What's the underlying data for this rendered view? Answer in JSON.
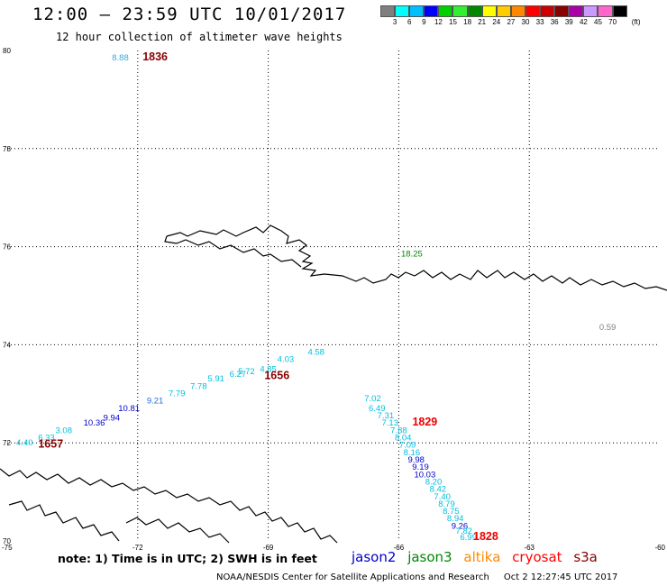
{
  "title": "12:00 – 23:59 UTC 10/01/2017",
  "subtitle": "12 hour collection of altimeter wave heights",
  "legend": {
    "unit": "(ft)",
    "colors": [
      "#7f7f7f",
      "#00ffff",
      "#00bfff",
      "#0000ff",
      "#00d000",
      "#33ee33",
      "#008800",
      "#ffff00",
      "#ffcc00",
      "#ff8800",
      "#ff0000",
      "#cc0000",
      "#880000",
      "#aa00aa",
      "#cc99ff",
      "#ff66cc",
      "#000000"
    ],
    "labels": [
      "3",
      "6",
      "9",
      "12",
      "15",
      "18",
      "21",
      "24",
      "27",
      "30",
      "33",
      "36",
      "39",
      "42",
      "45",
      "70"
    ]
  },
  "axes": {
    "lat_ticks": [
      {
        "value": 70,
        "label": "70"
      },
      {
        "value": 72,
        "label": "72"
      },
      {
        "value": 74,
        "label": "74"
      },
      {
        "value": 76,
        "label": "76"
      },
      {
        "value": 78,
        "label": "78"
      },
      {
        "value": 80,
        "label": "80"
      }
    ],
    "lon_ticks": [
      {
        "value": -75,
        "label": "-75"
      },
      {
        "value": -72,
        "label": "-72"
      },
      {
        "value": -69,
        "label": "-69"
      },
      {
        "value": -66,
        "label": "-66"
      },
      {
        "value": -63,
        "label": "-63"
      },
      {
        "value": -60,
        "label": "-60"
      }
    ],
    "lat_range": [
      70,
      80
    ],
    "lon_range": [
      -75,
      -60
    ]
  },
  "observations": [
    {
      "text": "8.88",
      "lon": -72.4,
      "lat": 79.8,
      "color": "#33a9e0"
    },
    {
      "text": "18.25",
      "lon": -65.7,
      "lat": 75.8,
      "color": "#008800"
    },
    {
      "text": "0.59",
      "lon": -61.2,
      "lat": 74.3,
      "color": "#7f7f7f"
    },
    {
      "text": "4.58",
      "lon": -67.9,
      "lat": 73.8,
      "color": "#00bfdf"
    },
    {
      "text": "4.03",
      "lon": -68.6,
      "lat": 73.65,
      "color": "#00bfdf"
    },
    {
      "text": "4.85",
      "lon": -69.0,
      "lat": 73.45,
      "color": "#00bfdf"
    },
    {
      "text": "5.72",
      "lon": -69.5,
      "lat": 73.4,
      "color": "#00bfdf"
    },
    {
      "text": "6.27",
      "lon": -69.7,
      "lat": 73.35,
      "color": "#00bfdf"
    },
    {
      "text": "5.91",
      "lon": -70.2,
      "lat": 73.25,
      "color": "#00bfdf"
    },
    {
      "text": "7.78",
      "lon": -70.6,
      "lat": 73.1,
      "color": "#00bfdf"
    },
    {
      "text": "7.79",
      "lon": -71.1,
      "lat": 72.95,
      "color": "#00bfdf"
    },
    {
      "text": "9.21",
      "lon": -71.6,
      "lat": 72.8,
      "color": "#1e6ed8"
    },
    {
      "text": "10.81",
      "lon": -72.2,
      "lat": 72.65,
      "color": "#0000cc"
    },
    {
      "text": "9.94",
      "lon": -72.6,
      "lat": 72.45,
      "color": "#0000cc"
    },
    {
      "text": "10.36",
      "lon": -73.0,
      "lat": 72.35,
      "color": "#0000cc"
    },
    {
      "text": "3.08",
      "lon": -73.7,
      "lat": 72.2,
      "color": "#00bfdf"
    },
    {
      "text": "6.33",
      "lon": -74.1,
      "lat": 72.05,
      "color": "#00bfdf"
    },
    {
      "text": "4.40",
      "lon": -74.6,
      "lat": 71.95,
      "color": "#00bfdf"
    },
    {
      "text": "7.02",
      "lon": -66.6,
      "lat": 72.85,
      "color": "#00bfdf"
    },
    {
      "text": "6.49",
      "lon": -66.5,
      "lat": 72.65,
      "color": "#00bfdf"
    },
    {
      "text": "7.31",
      "lon": -66.3,
      "lat": 72.5,
      "color": "#00bfdf"
    },
    {
      "text": "7.13",
      "lon": -66.2,
      "lat": 72.35,
      "color": "#00bfdf"
    },
    {
      "text": "7.88",
      "lon": -66.0,
      "lat": 72.2,
      "color": "#00bfdf"
    },
    {
      "text": "8.04",
      "lon": -65.9,
      "lat": 72.05,
      "color": "#00bfdf"
    },
    {
      "text": "7.09",
      "lon": -65.8,
      "lat": 71.9,
      "color": "#00bfdf"
    },
    {
      "text": "8.16",
      "lon": -65.7,
      "lat": 71.75,
      "color": "#00bfdf"
    },
    {
      "text": "9.98",
      "lon": -65.6,
      "lat": 71.6,
      "color": "#0000cc"
    },
    {
      "text": "9.19",
      "lon": -65.5,
      "lat": 71.45,
      "color": "#0000cc"
    },
    {
      "text": "10.03",
      "lon": -65.4,
      "lat": 71.3,
      "color": "#0000cc"
    },
    {
      "text": "8.20",
      "lon": -65.2,
      "lat": 71.15,
      "color": "#00bfdf"
    },
    {
      "text": "8.42",
      "lon": -65.1,
      "lat": 71.0,
      "color": "#00bfdf"
    },
    {
      "text": "7.40",
      "lon": -65.0,
      "lat": 70.85,
      "color": "#00bfdf"
    },
    {
      "text": "8.79",
      "lon": -64.9,
      "lat": 70.7,
      "color": "#00bfdf"
    },
    {
      "text": "8.75",
      "lon": -64.8,
      "lat": 70.55,
      "color": "#00bfdf"
    },
    {
      "text": "8.94",
      "lon": -64.7,
      "lat": 70.4,
      "color": "#00bfdf"
    },
    {
      "text": "9.26",
      "lon": -64.6,
      "lat": 70.25,
      "color": "#0000cc"
    },
    {
      "text": "7.82",
      "lon": -64.5,
      "lat": 70.15,
      "color": "#00bfdf"
    },
    {
      "text": "6.99",
      "lon": -64.4,
      "lat": 70.02,
      "color": "#00bfdf"
    }
  ],
  "pass_times": [
    {
      "text": "1836",
      "lon": -71.6,
      "lat": 79.8,
      "color": "#880000"
    },
    {
      "text": "1656",
      "lon": -68.8,
      "lat": 73.3,
      "color": "#880000"
    },
    {
      "text": "1657",
      "lon": -74.0,
      "lat": 71.9,
      "color": "#880000"
    },
    {
      "text": "1829",
      "lon": -65.4,
      "lat": 72.35,
      "color": "#ee0000"
    },
    {
      "text": "1828",
      "lon": -64.0,
      "lat": 70.02,
      "color": "#ee0000"
    }
  ],
  "note": "note:  1) Time is in UTC;  2) SWH is in feet",
  "satellites": [
    {
      "name": "jason2",
      "color": "#0000cc"
    },
    {
      "name": "jason3",
      "color": "#008800"
    },
    {
      "name": "altika",
      "color": "#ff8800"
    },
    {
      "name": "cryosat",
      "color": "#ff0000"
    },
    {
      "name": "s3a",
      "color": "#880000"
    }
  ],
  "footer": {
    "credit": "NOAA/NESDIS Center for Satellite Applications and Research",
    "timestamp": "Oct  2 12:27:45 UTC 2017"
  }
}
